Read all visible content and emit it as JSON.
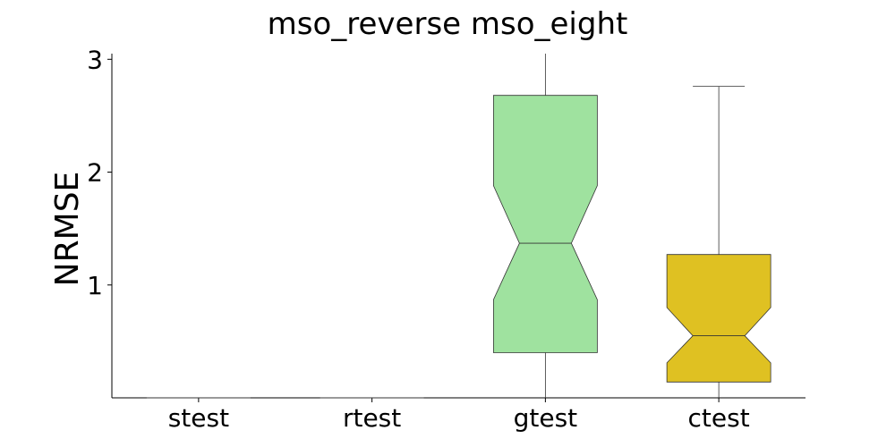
{
  "chart_data": {
    "type": "boxplot",
    "title": "mso_reverse mso_eight",
    "xlabel": "",
    "ylabel": "NRMSE",
    "categories": [
      "stest",
      "rtest",
      "gtest",
      "ctest"
    ],
    "yticks": [
      1,
      2,
      3
    ],
    "ytick_labels": [
      "1",
      "2",
      "3"
    ],
    "ylim": [
      0.0,
      3.05
    ],
    "grid": false,
    "notched": true,
    "boxes": [
      {
        "category": "stest",
        "min": 0.0,
        "q1": 0.0,
        "median": 0.0,
        "q3": 0.0,
        "max": 0.0,
        "notch_low": 0.0,
        "notch_high": 0.0,
        "color": "#1f77b4"
      },
      {
        "category": "rtest",
        "min": 0.0,
        "q1": 0.0,
        "median": 0.0,
        "q3": 0.0,
        "max": 0.0,
        "notch_low": 0.0,
        "notch_high": 0.0,
        "color": "#ff7f0e"
      },
      {
        "category": "gtest",
        "min": 0.0,
        "q1": 0.4,
        "median": 1.37,
        "q3": 2.68,
        "max": 3.05,
        "notch_low": 0.87,
        "notch_high": 1.88,
        "color": "#9fe29f"
      },
      {
        "category": "ctest",
        "min": 0.0,
        "q1": 0.14,
        "median": 0.55,
        "q3": 1.27,
        "max": 2.76,
        "notch_low": 0.31,
        "notch_high": 0.8,
        "color": "#dfc122"
      }
    ]
  }
}
